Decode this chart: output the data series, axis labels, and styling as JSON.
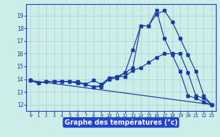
{
  "background_color": "#cceee8",
  "grid_color": "#aacccc",
  "line_color": "#1a3aaa",
  "xlabel": "Graphe des températures (°c)",
  "xlabel_bg": "#2244cc",
  "ylim": [
    11.5,
    19.9
  ],
  "xlim": [
    -0.5,
    23.5
  ],
  "yticks": [
    12,
    13,
    14,
    15,
    16,
    17,
    18,
    19
  ],
  "xticks": [
    0,
    1,
    2,
    3,
    4,
    5,
    6,
    7,
    8,
    9,
    10,
    11,
    12,
    13,
    14,
    15,
    16,
    17,
    18,
    19,
    20,
    21,
    22,
    23
  ],
  "series": [
    {
      "x": [
        0,
        1,
        2,
        3,
        4,
        5,
        6,
        7,
        8,
        9,
        10,
        11,
        12,
        13,
        14,
        15,
        16,
        17,
        18,
        19,
        20,
        21,
        22,
        23
      ],
      "y": [
        13.9,
        13.7,
        13.8,
        13.8,
        13.8,
        13.8,
        13.7,
        13.6,
        13.9,
        13.6,
        14.1,
        14.2,
        14.5,
        16.3,
        18.2,
        18.2,
        19.1,
        19.4,
        18.5,
        17.2,
        15.9,
        14.6,
        12.7,
        12.0
      ]
    },
    {
      "x": [
        0,
        1,
        2,
        3,
        4,
        5,
        6,
        7,
        8,
        9,
        10,
        11,
        12,
        13,
        14,
        15,
        16,
        17,
        18,
        19,
        20,
        21,
        22,
        23
      ],
      "y": [
        13.9,
        13.7,
        13.8,
        13.8,
        13.8,
        13.8,
        13.8,
        13.6,
        13.4,
        13.4,
        14.1,
        14.2,
        14.2,
        14.7,
        14.9,
        15.3,
        15.7,
        16.0,
        16.0,
        16.0,
        14.5,
        12.7,
        12.5,
        12.0
      ]
    },
    {
      "x": [
        0,
        1,
        2,
        3,
        4,
        5,
        6,
        7,
        8,
        9,
        10,
        11,
        12,
        13,
        14,
        15,
        16,
        17,
        18,
        19,
        20,
        21,
        22,
        23
      ],
      "y": [
        13.9,
        13.7,
        13.8,
        13.8,
        13.8,
        13.8,
        13.7,
        13.6,
        13.4,
        13.5,
        14.0,
        14.1,
        14.5,
        14.9,
        18.2,
        18.2,
        19.4,
        17.2,
        15.9,
        14.6,
        12.7,
        12.5,
        12.2,
        12.0
      ]
    },
    {
      "x": [
        0,
        23
      ],
      "y": [
        13.9,
        12.0
      ]
    }
  ]
}
